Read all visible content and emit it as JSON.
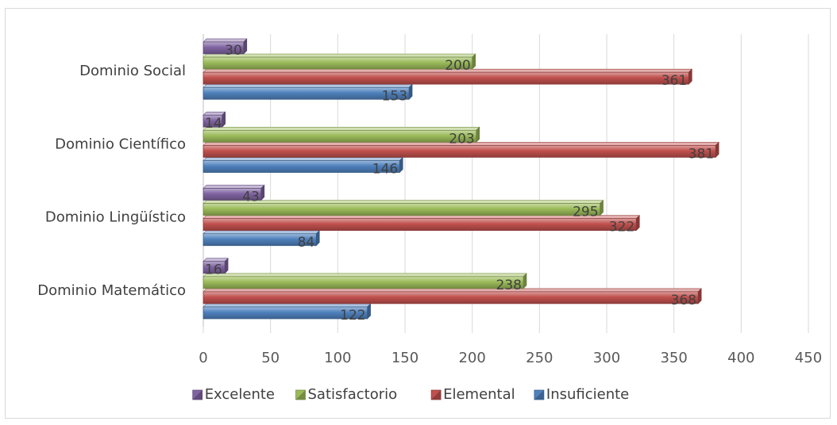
{
  "chart_data": {
    "type": "bar",
    "orientation": "horizontal",
    "categories": [
      "Dominio Matemático",
      "Dominio Lingüístico",
      "Dominio Científico",
      "Dominio Social"
    ],
    "series": [
      {
        "name": "Insuficiente",
        "color": "#4F81BD",
        "values": [
          122,
          84,
          146,
          153
        ]
      },
      {
        "name": "Elemental",
        "color": "#C0504D",
        "values": [
          368,
          322,
          381,
          361
        ]
      },
      {
        "name": "Satisfactorio",
        "color": "#9BBB59",
        "values": [
          238,
          295,
          203,
          200
        ]
      },
      {
        "name": "Excelente",
        "color": "#8064A2",
        "values": [
          16,
          43,
          14,
          30
        ]
      }
    ],
    "legend_order": [
      "Excelente",
      "Satisfactorio",
      "Elemental",
      "Insuficiente"
    ],
    "xlim": [
      0,
      450
    ],
    "xticks": [
      0,
      50,
      100,
      150,
      200,
      250,
      300,
      350,
      400,
      450
    ],
    "grid": "vertical",
    "legend_position": "bottom",
    "data_labels": true
  }
}
